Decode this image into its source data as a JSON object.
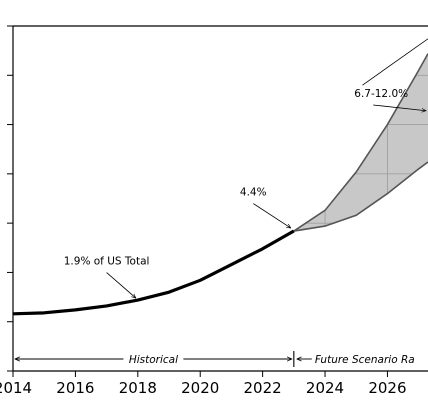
{
  "chart_data": {
    "type": "area",
    "x_ticks": [
      2014,
      2016,
      2018,
      2020,
      2022,
      2024,
      2026
    ],
    "xlim": [
      2014,
      2027.3
    ],
    "ylim": [
      0,
      350
    ],
    "historical": {
      "x": [
        2014,
        2015,
        2016,
        2017,
        2018,
        2019,
        2020,
        2021,
        2022,
        2023
      ],
      "y": [
        58,
        59,
        62,
        66,
        72,
        80,
        92,
        108,
        124,
        142
      ]
    },
    "scenario_low": {
      "x": [
        2023,
        2024,
        2025,
        2026,
        2027,
        2027.3
      ],
      "y": [
        142,
        147,
        158,
        180,
        205,
        212
      ]
    },
    "scenario_high": {
      "x": [
        2023,
        2024,
        2025,
        2026,
        2027,
        2027.3
      ],
      "y": [
        142,
        163,
        202,
        250,
        305,
        322
      ]
    },
    "annotations": [
      {
        "text": "1.9% of US Total",
        "x": 2018,
        "y": 72,
        "text_x": 2017.0,
        "text_y": 108
      },
      {
        "text": "4.4%",
        "x": 2023,
        "y": 142,
        "text_x": 2021.7,
        "text_y": 178
      },
      {
        "text": "6.7-12.0%",
        "x": 2027.3,
        "y": 262,
        "text_x": 2025.8,
        "text_y": 278
      }
    ],
    "regions": {
      "historical_label": "Historical",
      "future_label": "Future Scenario Ra"
    },
    "colors": {
      "historical_line": "#000000",
      "scenario_fill": "#c8c8c8",
      "scenario_edge": "#555555",
      "grid": "#a0a0a0"
    }
  }
}
